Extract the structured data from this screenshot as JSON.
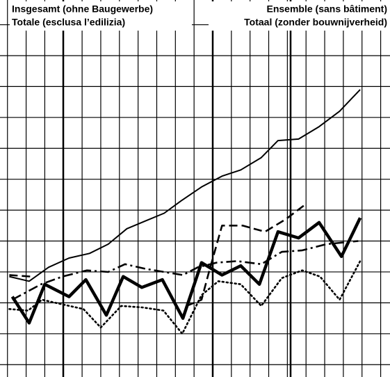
{
  "chart_data": {
    "type": "line",
    "titles": [
      "Insgesamt (ohne Baugewerbe)",
      "Totale (esclusa l’edilizia)",
      "Ensemble (sans bâtiment)",
      "Totaal (zonder bouwnijverheid)"
    ],
    "xlim": [
      -0.4,
      20.5
    ],
    "ylim": [
      -0.4,
      11.8
    ],
    "grid": true,
    "series": [
      {
        "color": "#000000",
        "dash": "solid",
        "weight": "thin",
        "x": [
          0.1,
          1.16,
          2.2,
          3.3,
          4.4,
          5.4,
          6.4,
          7.4,
          8.4,
          9.3,
          10.4,
          11.5,
          12.5,
          13.6,
          14.5,
          15.6,
          16.7,
          17.8,
          18.9
        ],
        "values": [
          2.85,
          2.7,
          3.15,
          3.45,
          3.6,
          3.9,
          4.4,
          4.65,
          4.9,
          5.3,
          5.75,
          6.1,
          6.3,
          6.7,
          7.25,
          7.3,
          7.7,
          8.2,
          8.9
        ]
      },
      {
        "color": "#000000",
        "dash": "dashed",
        "weight": "medium",
        "x": [
          0.1,
          1.26,
          null,
          9.6,
          10.4,
          10.8,
          11.5,
          12.6,
          13.8,
          14.9,
          16.0
        ],
        "values": [
          2.9,
          2.85,
          null,
          1.9,
          2.1,
          3.0,
          4.5,
          4.5,
          4.3,
          4.7,
          5.2
        ]
      },
      {
        "color": "#000000",
        "dash": "solid",
        "weight": "thick",
        "x": [
          0.26,
          1.16,
          2.0,
          3.3,
          4.2,
          5.3,
          6.2,
          7.2,
          8.3,
          9.4,
          10.4,
          11.5,
          12.5,
          13.5,
          14.5,
          15.6,
          16.7,
          17.9,
          18.9
        ],
        "values": [
          2.2,
          1.35,
          2.6,
          2.2,
          2.75,
          1.6,
          2.85,
          2.5,
          2.75,
          1.5,
          3.3,
          2.9,
          3.2,
          2.6,
          4.3,
          4.1,
          4.6,
          3.5,
          4.75
        ]
      },
      {
        "color": "#000000",
        "dash": "dashdot",
        "weight": "medium",
        "x": [
          0.26,
          1.8,
          2.95,
          4.25,
          5.4,
          6.3,
          7.4,
          8.4,
          9.4,
          10.2,
          11.2,
          12.3,
          13.6,
          14.7,
          15.8,
          17.1,
          18.8
        ],
        "values": [
          2.1,
          2.6,
          2.85,
          3.05,
          3.0,
          3.25,
          3.1,
          3.0,
          2.9,
          3.15,
          3.3,
          3.35,
          3.25,
          3.65,
          3.7,
          3.9,
          4.0
        ]
      },
      {
        "color": "#000000",
        "dash": "dotted",
        "weight": "medium",
        "x": [
          0.1,
          1.1,
          1.85,
          2.95,
          4.07,
          5.0,
          6.1,
          7.24,
          8.36,
          9.37,
          10.4,
          11.3,
          12.5,
          13.6,
          14.7,
          15.8,
          16.75,
          17.8,
          18.9
        ],
        "values": [
          1.8,
          1.75,
          2.1,
          1.95,
          1.8,
          1.2,
          1.9,
          1.85,
          1.75,
          1.0,
          2.25,
          2.7,
          2.6,
          1.9,
          2.8,
          3.05,
          2.85,
          2.1,
          3.35
        ]
      }
    ]
  }
}
